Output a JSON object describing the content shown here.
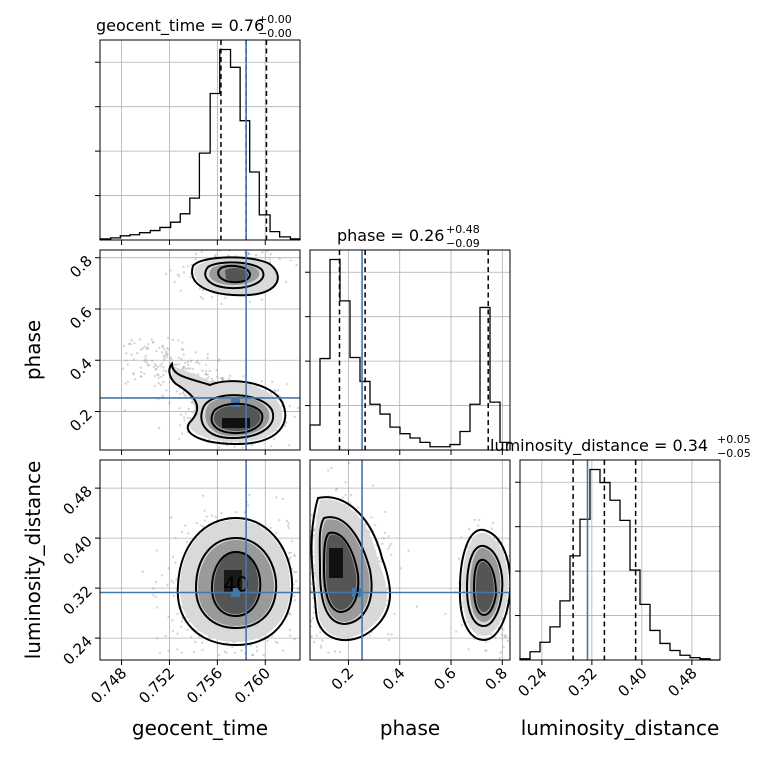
{
  "chart_data": {
    "type": "corner",
    "parameters": [
      "geocent_time",
      "phase",
      "luminosity_distance"
    ],
    "truths": {
      "geocent_time": 0.7584,
      "phase": 0.253,
      "luminosity_distance": 0.313
    },
    "titles": [
      {
        "param": "geocent_time",
        "label": "geocent_time = 0.76",
        "sup": "+0.00",
        "sub": "−0.00"
      },
      {
        "param": "phase",
        "label": "phase = 0.26",
        "sup": "+0.48",
        "sub": "−0.09"
      },
      {
        "param": "luminosity_distance",
        "label": "luminosity_distance = 0.34",
        "sup": "+0.05",
        "sub": "−0.05"
      }
    ],
    "axis_labels": {
      "geocent_time": "geocent_time",
      "phase": "phase",
      "luminosity_distance": "luminosity_distance"
    },
    "ranges": {
      "geocent_time": [
        0.7462,
        0.7629
      ],
      "phase": [
        0.05,
        0.83
      ],
      "luminosity_distance": [
        0.205,
        0.525
      ]
    },
    "ticks": {
      "geocent_time": [
        "0.748",
        "0.752",
        "0.756",
        "0.760"
      ],
      "phase_x": [
        "0.2",
        "0.4",
        "0.6",
        "0.8"
      ],
      "phase_y": [
        "0.2",
        "0.4",
        "0.6",
        "0.8"
      ],
      "luminosity_distance": [
        "0.24",
        "0.32",
        "0.40",
        "0.48"
      ]
    },
    "marginals": {
      "geocent_time": {
        "bin_edges": [
          0.7462,
          0.7471,
          0.7479,
          0.7487,
          0.7495,
          0.7504,
          0.7512,
          0.7521,
          0.7529,
          0.7537,
          0.7545,
          0.7554,
          0.7562,
          0.7571,
          0.7579,
          0.7587,
          0.7595,
          0.7604,
          0.7612,
          0.7621,
          0.7629
        ],
        "counts": [
          1,
          2,
          4,
          5,
          7,
          9,
          12,
          17,
          25,
          40,
          83,
          140,
          182,
          165,
          114,
          65,
          24,
          8,
          3,
          1
        ],
        "quantiles": [
          0.7563,
          0.7584,
          0.7601
        ]
      },
      "phase": {
        "bin_edges": [
          0.05,
          0.089,
          0.128,
          0.167,
          0.206,
          0.245,
          0.284,
          0.323,
          0.362,
          0.401,
          0.44,
          0.479,
          0.518,
          0.557,
          0.596,
          0.635,
          0.674,
          0.713,
          0.752,
          0.791,
          0.83
        ],
        "counts": [
          23,
          84,
          175,
          137,
          85,
          63,
          42,
          33,
          21,
          15,
          11,
          7,
          3,
          3,
          5,
          17,
          42,
          131,
          44,
          7
        ],
        "quantiles": [
          0.165,
          0.265,
          0.745
        ]
      },
      "luminosity_distance": {
        "bin_edges": [
          0.205,
          0.221,
          0.237,
          0.253,
          0.269,
          0.285,
          0.301,
          0.317,
          0.333,
          0.349,
          0.365,
          0.381,
          0.397,
          0.413,
          0.429,
          0.445,
          0.461,
          0.477,
          0.493,
          0.509,
          0.525
        ],
        "counts": [
          1,
          7,
          15,
          28,
          50,
          88,
          119,
          161,
          150,
          135,
          118,
          76,
          47,
          25,
          14,
          8,
          4,
          2,
          1,
          0
        ],
        "quantiles": [
          0.29,
          0.34,
          0.39
        ]
      }
    }
  }
}
